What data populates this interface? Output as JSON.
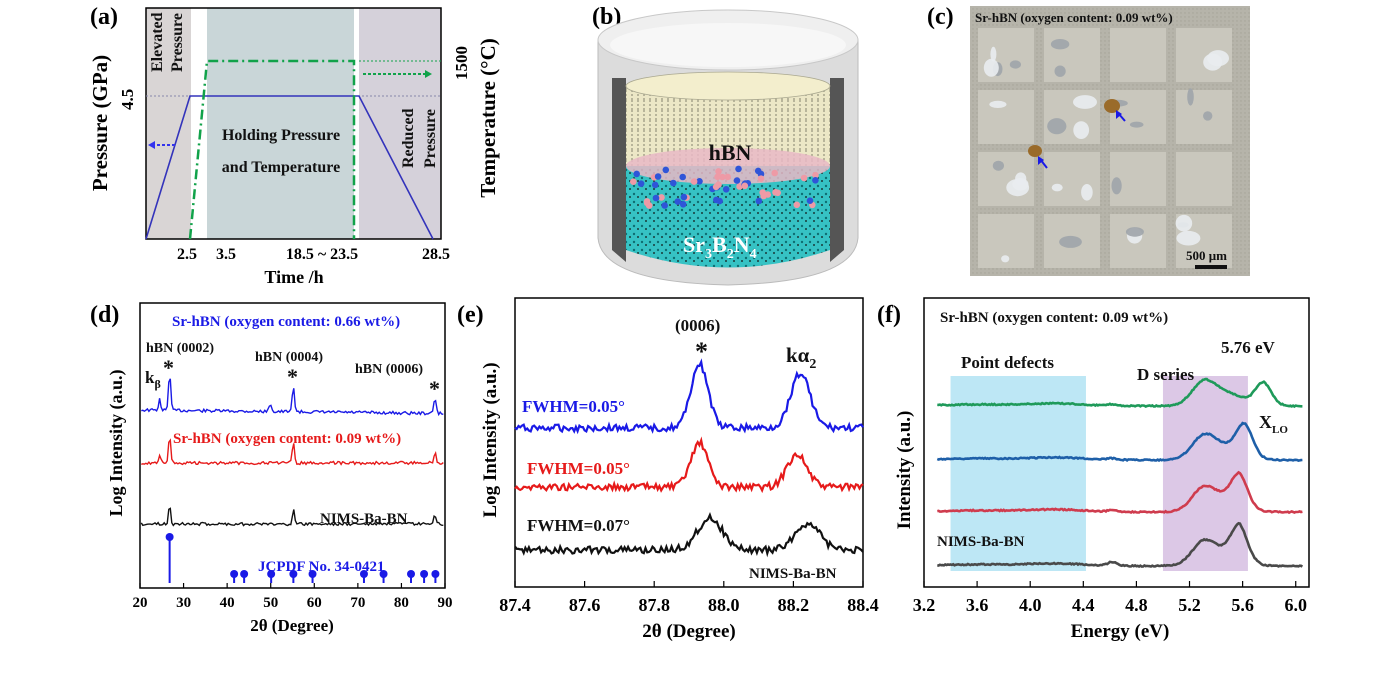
{
  "panel_labels": [
    "(a)",
    "(b)",
    "(c)",
    "(d)",
    "(e)",
    "(f)"
  ],
  "colors": {
    "blue": "#1a1ae6",
    "red": "#e61a1a",
    "black": "#111111",
    "green": "#1f9a5a",
    "teal": "#1e5fa8",
    "rose": "#cf3c4e",
    "gray": "#4a4a4a",
    "dashgreen": "#11a24a",
    "pressure_line": "#3333bb",
    "elevated_bg": "#d9d5d5",
    "holding_bg": "#c9d6d8",
    "reduced_bg": "#d5d1da",
    "point_defect_bg": "#bde7f5",
    "dseries_bg": "#dcc8e6"
  },
  "panel_a": {
    "ylabel_left": "Pressure (GPa)",
    "ylabel_right": "Temperature (°C)",
    "xlabel": "Time /h",
    "left_tick": "4.5",
    "right_tick": "1500",
    "x_ticks": [
      "2.5",
      "3.5",
      "18.5 ~ 23.5",
      "28.5"
    ],
    "region_elevated": [
      "Elevated",
      "Pressure"
    ],
    "region_holding": [
      "Holding Pressure",
      "and Temperature"
    ],
    "region_reduced": [
      "Reduced",
      "Pressure"
    ]
  },
  "panel_b": {
    "label_top": "hBN",
    "label_bottom_main": "Sr",
    "label_bottom_parts": [
      "3",
      "B",
      "2",
      "N",
      "4"
    ]
  },
  "panel_c": {
    "title": "Sr-hBN (oxygen content: 0.09 wt%)",
    "scale_bar": "500 μm"
  },
  "chart_data": [
    {
      "panel": "(d)",
      "type": "line",
      "xlabel": "2θ (Degree)",
      "ylabel": "Log Intensity (a.u.)",
      "xlim": [
        20,
        90
      ],
      "x_ticks": [
        "20",
        "30",
        "40",
        "50",
        "60",
        "70",
        "80",
        "90"
      ],
      "series": [
        {
          "name": "Sr-hBN (oxygen content: 0.66 wt%)",
          "offset": 3,
          "peaks": [
            [
              24.5,
              0.6
            ],
            [
              26.8,
              2.2
            ],
            [
              49.9,
              0.5
            ],
            [
              55.2,
              1.5
            ],
            [
              87.7,
              0.9
            ]
          ]
        },
        {
          "name": "Sr-hBN (oxygen content: 0.09 wt%)",
          "offset": 2,
          "peaks": [
            [
              24.5,
              0.5
            ],
            [
              26.8,
              1.6
            ],
            [
              55.2,
              1.1
            ],
            [
              87.7,
              0.6
            ]
          ]
        },
        {
          "name": "NIMS-Ba-BN",
          "offset": 1,
          "peaks": [
            [
              26.8,
              1.1
            ],
            [
              55.2,
              0.8
            ],
            [
              87.7,
              0.5
            ]
          ]
        }
      ],
      "reference": {
        "name": "JCPDF No. 34-0421",
        "positions": [
          26.8,
          41.6,
          43.9,
          50.1,
          55.2,
          59.6,
          71.4,
          75.9,
          82.2,
          85.2,
          87.8
        ]
      },
      "annotations": [
        "hBN (0002)",
        "hBN (0004)",
        "hBN (0006)",
        "k",
        "β",
        "*"
      ]
    },
    {
      "panel": "(e)",
      "type": "line",
      "xlabel": "2θ (Degree)",
      "ylabel": "Log Intensity (a.u.)",
      "xlim": [
        87.4,
        88.4
      ],
      "x_ticks": [
        "87.4",
        "87.6",
        "87.8",
        "88.0",
        "88.2",
        "88.4"
      ],
      "series": [
        {
          "name": "FWHM=0.05°",
          "offset": 3,
          "peaks": [
            [
              87.93,
              1.4,
              0.035
            ],
            [
              88.22,
              1.2,
              0.04
            ]
          ]
        },
        {
          "name": "FWHM=0.05°",
          "offset": 1.8,
          "peaks": [
            [
              87.93,
              0.8,
              0.035
            ],
            [
              88.21,
              0.6,
              0.04
            ]
          ]
        },
        {
          "name": "FWHM=0.07°",
          "offset": 0.8,
          "peaks": [
            [
              87.96,
              0.6,
              0.05
            ],
            [
              88.24,
              0.5,
              0.05
            ]
          ]
        }
      ],
      "annotations": [
        "(0006)",
        "*",
        "kα",
        "2",
        "NIMS-Ba-BN"
      ]
    },
    {
      "panel": "(f)",
      "type": "line",
      "xlabel": "Energy (eV)",
      "ylabel": "Intensity (a.u.)",
      "title": "Sr-hBN (oxygen content: 0.09 wt%)",
      "xlim": [
        3.2,
        6.1
      ],
      "x_ticks": [
        "3.2",
        "3.6",
        "4.0",
        "4.4",
        "4.8",
        "5.2",
        "5.6",
        "6.0"
      ],
      "shaded_regions": [
        {
          "label": "Point defects",
          "range": [
            3.4,
            4.42
          ]
        },
        {
          "label": "D series",
          "range": [
            5.0,
            5.64
          ]
        }
      ],
      "series": [
        {
          "name": "",
          "offset": 3.9,
          "peak_energy": 5.76,
          "peak_height": 0.75
        },
        {
          "name": "",
          "offset": 2.7,
          "peak_energy": 5.62,
          "peak_height": 1.0
        },
        {
          "name": "",
          "offset": 1.55,
          "peak_energy": 5.58,
          "peak_height": 1.0
        },
        {
          "name": "NIMS-Ba-BN",
          "offset": 0.45,
          "peak_energy": 5.58,
          "peak_height": 1.1
        }
      ],
      "annotations": [
        "5.76 eV",
        "X",
        "LO"
      ]
    }
  ]
}
